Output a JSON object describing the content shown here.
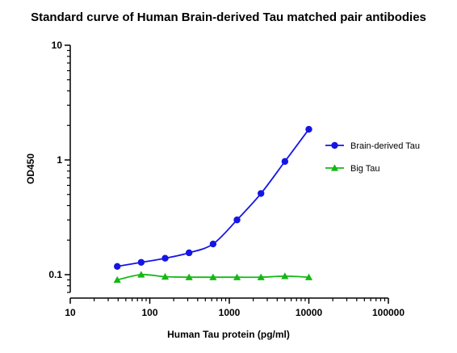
{
  "chart_data": {
    "type": "line",
    "title": "Standard curve of Human Brain-derived Tau matched pair antibodies",
    "xlabel": "Human Tau protein (pg/ml)",
    "ylabel": "OD450",
    "xscale": "log",
    "yscale": "log",
    "xlim": [
      10,
      100000
    ],
    "ylim": [
      0.07,
      10
    ],
    "xticks": [
      10,
      100,
      1000,
      10000,
      100000
    ],
    "xtick_labels": [
      "10",
      "100",
      "1000",
      "10000",
      "100000"
    ],
    "yticks": [
      0.1,
      1,
      10
    ],
    "ytick_labels": [
      "0.1",
      "1",
      "10"
    ],
    "grid": false,
    "legend_position": "right",
    "series": [
      {
        "name": "Brain-derived Tau",
        "marker": "circle",
        "color": "#1515e6",
        "x": [
          39,
          78,
          156,
          312,
          625,
          1250,
          2500,
          5000,
          10000
        ],
        "y": [
          0.118,
          0.128,
          0.139,
          0.155,
          0.185,
          0.3,
          0.51,
          0.97,
          1.85
        ]
      },
      {
        "name": "Big Tau",
        "marker": "triangle",
        "color": "#14b814",
        "x": [
          39,
          78,
          156,
          312,
          625,
          1250,
          2500,
          5000,
          10000
        ],
        "y": [
          0.09,
          0.1,
          0.096,
          0.095,
          0.095,
          0.095,
          0.095,
          0.097,
          0.095
        ]
      }
    ]
  }
}
